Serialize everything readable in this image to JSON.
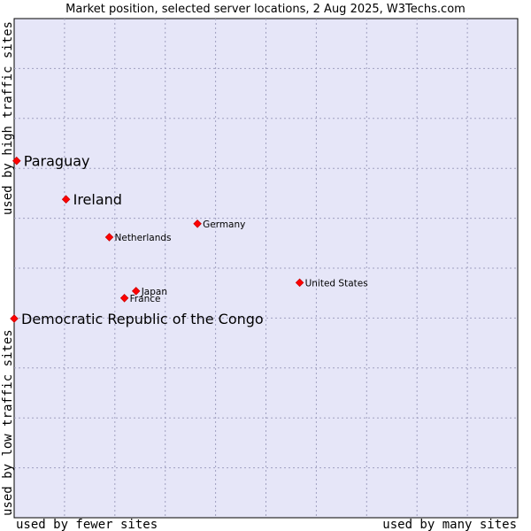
{
  "chart_data": {
    "type": "scatter",
    "title": "Market position, selected server locations, 2 Aug 2025, W3Techs.com",
    "xlabel_low": "used by fewer sites",
    "xlabel_high": "used by many sites",
    "ylabel_low": "used by low traffic sites",
    "ylabel_high": "used by high traffic sites",
    "xlim": [
      0,
      100
    ],
    "ylim": [
      0,
      100
    ],
    "grid": true,
    "points": [
      {
        "name": "Paraguay",
        "x": 0.5,
        "y": 71.5,
        "size": "large"
      },
      {
        "name": "Ireland",
        "x": 10.3,
        "y": 63.8,
        "size": "large"
      },
      {
        "name": "Germany",
        "x": 36.4,
        "y": 58.9,
        "size": "small"
      },
      {
        "name": "Netherlands",
        "x": 18.9,
        "y": 56.2,
        "size": "small"
      },
      {
        "name": "United States",
        "x": 56.7,
        "y": 47.1,
        "size": "small"
      },
      {
        "name": "Japan",
        "x": 24.2,
        "y": 45.4,
        "size": "small"
      },
      {
        "name": "France",
        "x": 21.9,
        "y": 44.0,
        "size": "small"
      },
      {
        "name": "Democratic Republic of the Congo",
        "x": 0.0,
        "y": 39.9,
        "size": "large"
      }
    ]
  },
  "colors": {
    "plot_background": "#e6e6f8",
    "grid": "#a0a0c0",
    "marker": "#ff0000",
    "marker_outline": "#cc0000",
    "text": "#000000"
  }
}
